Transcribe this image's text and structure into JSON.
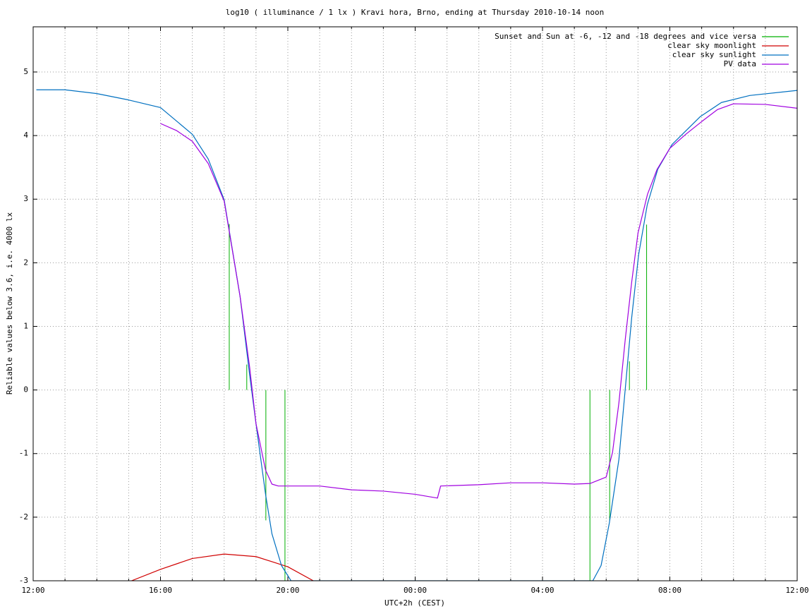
{
  "chart_data": {
    "type": "line",
    "title": "log10 ( illuminance / 1 lx ) Kravi hora, Brno, ending at Thursday 2010-10-14 noon",
    "xlabel": "UTC+2h (CEST)",
    "ylabel": "Reliable values below 3.6, i.e. 4000 lx",
    "xlim": [
      0,
      24
    ],
    "ylim": [
      -3,
      5.71
    ],
    "xticks": [
      {
        "value": 0,
        "label": "12:00"
      },
      {
        "value": 4,
        "label": "16:00"
      },
      {
        "value": 8,
        "label": "20:00"
      },
      {
        "value": 12,
        "label": "00:00"
      },
      {
        "value": 16,
        "label": "04:00"
      },
      {
        "value": 20,
        "label": "08:00"
      },
      {
        "value": 24,
        "label": "12:00"
      }
    ],
    "xminorticks": [
      1,
      2,
      3,
      5,
      6,
      7,
      9,
      10,
      11,
      13,
      14,
      15,
      17,
      18,
      19,
      21,
      22,
      23
    ],
    "yticks": [
      -3,
      -2,
      -1,
      0,
      1,
      2,
      3,
      4,
      5
    ],
    "grid": true,
    "legend": "top-right",
    "series": [
      {
        "name": "Sunset and Sun at -6, -12 and -18 degrees and vice versa",
        "color": "#00b000",
        "style": "impulses",
        "x": [
          6.16,
          6.71,
          7.31,
          7.91,
          17.49,
          18.11,
          18.73,
          19.27
        ],
        "values": [
          2.61,
          0.4,
          -2.05,
          -3,
          -3,
          -2.05,
          0.45,
          2.6
        ]
      },
      {
        "name": "clear sky moonlight",
        "color": "#d00000",
        "style": "line",
        "x": [
          3.09,
          4,
          5,
          6,
          7,
          8,
          8.8
        ],
        "values": [
          -3,
          -2.82,
          -2.65,
          -2.58,
          -2.62,
          -2.78,
          -3
        ]
      },
      {
        "name": "clear sky sunlight",
        "color": "#0070c0",
        "style": "line",
        "x": [
          0.1,
          1,
          2,
          3,
          4,
          5,
          5.5,
          6,
          6.5,
          6.8,
          7,
          7.3,
          7.5,
          7.8,
          8.1,
          17.58,
          17.84,
          18.1,
          18.4,
          18.58,
          18.8,
          19.02,
          19.29,
          19.62,
          20.07,
          20.96,
          21.62,
          22.51,
          24
        ],
        "values": [
          4.72,
          4.72,
          4.66,
          4.56,
          4.44,
          4.02,
          3.63,
          2.99,
          1.47,
          0.24,
          -0.53,
          -1.64,
          -2.26,
          -2.76,
          -3,
          -3,
          -2.76,
          -2.09,
          -1.09,
          -0.09,
          1.13,
          2.13,
          2.91,
          3.47,
          3.86,
          4.3,
          4.52,
          4.63,
          4.71
        ]
      },
      {
        "name": "PV data",
        "color": "#a000e0",
        "style": "line",
        "x": [
          4,
          4.5,
          5,
          5.5,
          6,
          6.5,
          6.8,
          7,
          7.3,
          7.5,
          7.7,
          9,
          10,
          11,
          12,
          12.7,
          12.8,
          14,
          15,
          16,
          17,
          17.5,
          18,
          18.2,
          18.4,
          18.6,
          18.8,
          19,
          19.3,
          19.6,
          20,
          20.5,
          21,
          21.5,
          22,
          23,
          24
        ],
        "values": [
          4.19,
          4.08,
          3.91,
          3.56,
          2.97,
          1.47,
          0.36,
          -0.53,
          -1.26,
          -1.48,
          -1.51,
          -1.51,
          -1.57,
          -1.59,
          -1.64,
          -1.7,
          -1.51,
          -1.49,
          -1.46,
          -1.46,
          -1.48,
          -1.47,
          -1.37,
          -0.98,
          -0.2,
          0.8,
          1.69,
          2.47,
          3.08,
          3.47,
          3.8,
          4.02,
          4.22,
          4.41,
          4.5,
          4.49,
          4.43
        ]
      }
    ]
  }
}
